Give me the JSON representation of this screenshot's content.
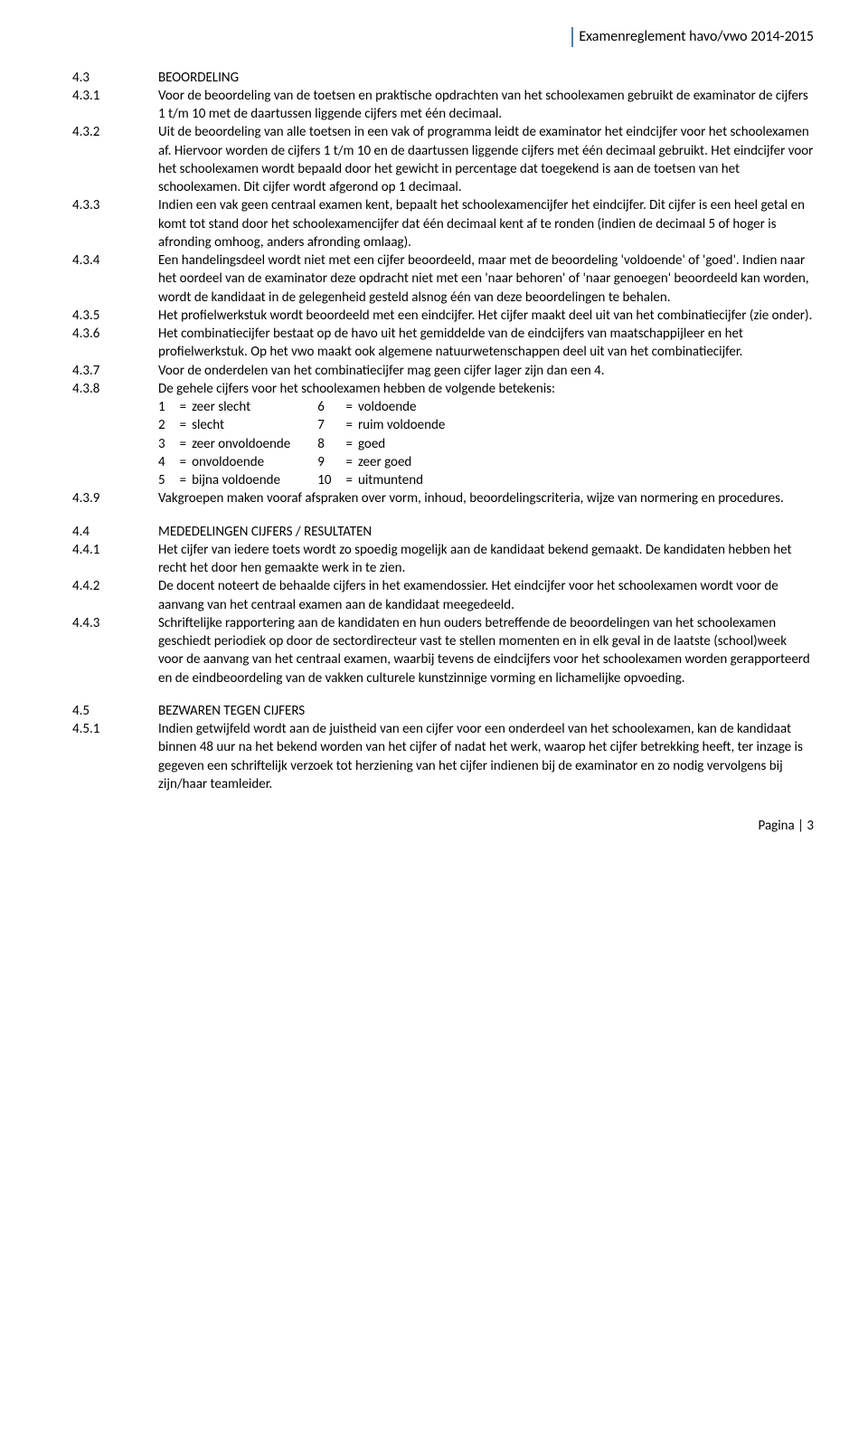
{
  "colors": {
    "header_border": "#4a7db0",
    "text": "#000000",
    "background": "#ffffff"
  },
  "header_title": "Examenreglement havo/vwo 2014-2015",
  "sections": [
    {
      "num": "4.3",
      "heading": "BEOORDELING",
      "items": [
        {
          "num": "4.3.1",
          "text": "Voor de beoordeling van de toetsen en praktische opdrachten van het schoolexamen gebruikt de examinator de cijfers 1 t/m 10 met de daartussen liggende cijfers met één decimaal."
        },
        {
          "num": "4.3.2",
          "text": "Uit de beoordeling van alle toetsen in een vak of programma leidt de examinator het eindcijfer voor het schoolexamen af. Hiervoor worden de cijfers 1 t/m 10 en de daartussen liggende cijfers met één decimaal gebruikt. Het eindcijfer voor het schoolexamen wordt bepaald door het gewicht in percentage dat toegekend is aan de toetsen van het schoolexamen. Dit cijfer wordt afgerond op 1 decimaal."
        },
        {
          "num": "4.3.3",
          "text": "Indien een vak geen centraal examen kent, bepaalt het schoolexamencijfer het eindcijfer. Dit cijfer is een heel getal en komt tot stand door het schoolexamencijfer dat één decimaal kent af te ronden (indien de decimaal 5 of hoger is afronding omhoog, anders afronding omlaag)."
        },
        {
          "num": "4.3.4",
          "text": "Een handelingsdeel wordt niet met een cijfer beoordeeld, maar met de beoordeling 'voldoende' of 'goed'. Indien naar het oordeel van de examinator deze opdracht niet met een 'naar behoren' of 'naar genoegen' beoordeeld kan worden, wordt de kandidaat in de gelegenheid gesteld alsnog één van deze beoordelingen te behalen."
        },
        {
          "num": "4.3.5",
          "text": "Het profielwerkstuk wordt beoordeeld met een eindcijfer. Het cijfer maakt deel uit van het combinatiecijfer (zie onder)."
        },
        {
          "num": "4.3.6",
          "text": "Het combinatiecijfer bestaat op de havo uit het gemiddelde van de eindcijfers van maatschappijleer en het profielwerkstuk. Op het vwo maakt ook algemene natuurwetenschappen deel uit van het combinatiecijfer."
        },
        {
          "num": "4.3.7",
          "text": "Voor de onderdelen van het combinatiecijfer mag geen cijfer lager zijn dan een 4."
        },
        {
          "num": "4.3.8",
          "text": "De gehele cijfers voor het schoolexamen hebben de volgende betekenis:",
          "grades": true
        },
        {
          "num": "4.3.9",
          "text": "Vakgroepen maken vooraf afspraken over vorm, inhoud, beoordelingscriteria, wijze van normering en procedures."
        }
      ]
    },
    {
      "num": "4.4",
      "heading": "MEDEDELINGEN CIJFERS / RESULTATEN",
      "items": [
        {
          "num": "4.4.1",
          "text": "Het cijfer van iedere toets wordt zo spoedig mogelijk aan de kandidaat bekend gemaakt. De kandidaten hebben het recht het door hen gemaakte werk in te zien."
        },
        {
          "num": "4.4.2",
          "text": "De docent noteert de behaalde cijfers in het examendossier. Het eindcijfer voor het schoolexamen wordt voor de aanvang van het centraal examen aan de kandidaat meegedeeld."
        },
        {
          "num": "4.4.3",
          "text": "Schriftelijke rapportering aan de kandidaten en hun ouders betreffende de beoordelingen van het schoolexamen geschiedt periodiek op door de sectordirecteur vast te stellen momenten en in elk geval in de laatste (school)week voor de aanvang van het centraal examen, waarbij tevens de eindcijfers voor het schoolexamen worden gerapporteerd en de eindbeoordeling van de vakken culturele kunstzinnige vorming en lichamelijke opvoeding."
        }
      ]
    },
    {
      "num": "4.5",
      "heading": "BEZWAREN TEGEN CIJFERS",
      "items": [
        {
          "num": "4.5.1",
          "text": "Indien getwijfeld wordt aan de juistheid van een cijfer voor een onderdeel van het schoolexamen, kan de kandidaat binnen 48 uur na het bekend worden van het cijfer of nadat het werk, waarop het cijfer betrekking heeft, ter inzage is gegeven een schriftelijk verzoek tot herziening van het cijfer indienen bij de examinator en zo nodig vervolgens bij zijn/haar teamleider."
        }
      ]
    }
  ],
  "grades_left": [
    {
      "n": "1",
      "d": "zeer slecht"
    },
    {
      "n": "2",
      "d": "slecht"
    },
    {
      "n": "3",
      "d": "zeer onvoldoende"
    },
    {
      "n": "4",
      "d": "onvoldoende"
    },
    {
      "n": "5",
      "d": "bijna voldoende"
    }
  ],
  "grades_right": [
    {
      "n": "6",
      "d": "voldoende"
    },
    {
      "n": "7",
      "d": "ruim voldoende"
    },
    {
      "n": "8",
      "d": "goed"
    },
    {
      "n": "9",
      "d": "zeer goed"
    },
    {
      "n": "10",
      "d": "uitmuntend"
    }
  ],
  "eq": "=",
  "footer": "Pagina | 3"
}
